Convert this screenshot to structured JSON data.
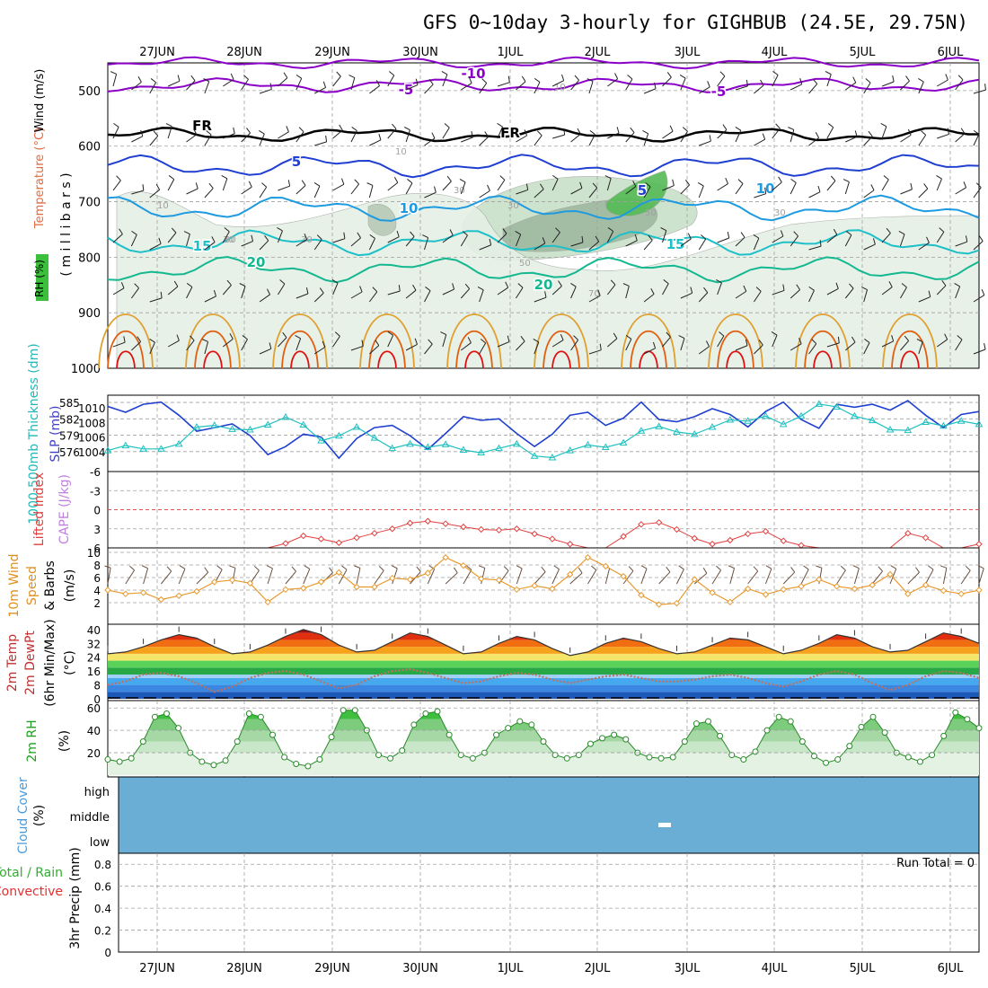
{
  "header": {
    "title": "GFS 0~10day 3-hourly for GIGHBUB (24.5E, 29.75N)"
  },
  "colors": {
    "purple": "#8b00c8",
    "black": "#000000",
    "blue": "#1f3fd0",
    "lightblue": "#1e9be0",
    "cyan": "#1dbfc8",
    "teal": "#14b890",
    "orange": "#e0a030",
    "darkorange": "#e06010",
    "red": "#e01010",
    "slp": "#1f3fd0",
    "thickness": "#20c0c0",
    "lifted": "#e04040",
    "cape": "#c080e0",
    "wind10m": "#e89a30",
    "rh": "#30b030",
    "cloud": "#6aaed6",
    "grid": "#a0a0a0"
  },
  "chart_data": [
    {
      "panel": "upper-air",
      "type": "contour",
      "date_labels": [
        "27JUN",
        "28JUN",
        "29JUN",
        "30JUN",
        "1JUL",
        "2JUL",
        "3JUL",
        "4JUL",
        "5JUL",
        "6JUL"
      ],
      "ylabel_parts": [
        "RH (%)",
        "Temperature (°C)",
        "Wind (m/s)",
        "( m i l l i b a r s )"
      ],
      "y_ticks": [
        "500",
        "600",
        "700",
        "800",
        "900",
        "1000"
      ],
      "ylim": [
        450,
        1000
      ],
      "contour_labels": [
        {
          "text": "-10",
          "level": -10,
          "color": "purple"
        },
        {
          "text": "-5",
          "level": -5,
          "color": "purple"
        },
        {
          "text": "-5",
          "level": -5,
          "color": "purple"
        },
        {
          "text": "FR",
          "level": 0,
          "color": "black"
        },
        {
          "text": "FR",
          "level": 0,
          "color": "black"
        },
        {
          "text": "5",
          "level": 5,
          "color": "blue"
        },
        {
          "text": "5",
          "level": 5,
          "color": "blue"
        },
        {
          "text": "10",
          "level": 10,
          "color": "lightblue"
        },
        {
          "text": "10",
          "level": 10,
          "color": "lightblue"
        },
        {
          "text": "15",
          "level": 15,
          "color": "cyan"
        },
        {
          "text": "15",
          "level": 15,
          "color": "cyan"
        },
        {
          "text": "20",
          "level": 20,
          "color": "teal"
        },
        {
          "text": "20",
          "level": 20,
          "color": "teal"
        }
      ],
      "rh_labels": [
        "10",
        "10",
        "10",
        "30",
        "30",
        "30",
        "30",
        "50",
        "50",
        "70",
        "30",
        "30"
      ]
    },
    {
      "panel": "slp-thickness",
      "type": "line",
      "ylabel_left": "1000-500mb Thickness (dm)",
      "ylabel_right": "SLP (mb)",
      "thickness_ticks": [
        "585",
        "582",
        "579",
        "576"
      ],
      "slp_ticks": [
        "1010",
        "1008",
        "1006",
        "1004"
      ],
      "slp": [
        1010.2,
        1009.4,
        1010.5,
        1010.8,
        1009,
        1006.8,
        1007.3,
        1007.8,
        1006.2,
        1003.6,
        1004.7,
        1006.4,
        1006,
        1003.1,
        1005.8,
        1007.3,
        1007.6,
        1006.2,
        1004.3,
        1006.5,
        1008.8,
        1008.3,
        1008.5,
        1006.5,
        1004.7,
        1006.4,
        1009,
        1009.4,
        1007.6,
        1008.6,
        1010.8,
        1008.4,
        1008.1,
        1008.8,
        1009.9,
        1009.1,
        1007.4,
        1009.5,
        1010.8,
        1008.4,
        1007.2,
        1010.5,
        1010.1,
        1010.5,
        1009.7,
        1011,
        1009,
        1007.3,
        1009.1,
        1009.5
      ],
      "thickness": [
        576.2,
        577.1,
        576.5,
        576.5,
        577.4,
        580.5,
        580.8,
        580.1,
        580.0,
        580.9,
        582.3,
        580.9,
        578.0,
        578.9,
        580.5,
        578.5,
        576.6,
        577.4,
        576.8,
        577.3,
        576.3,
        575.8,
        576.6,
        577.4,
        575.2,
        574.9,
        576.2,
        577.2,
        576.8,
        577.6,
        579.8,
        580.6,
        579.6,
        579.2,
        580.5,
        581.8,
        581.6,
        582.5,
        581.0,
        582.5,
        584.7,
        584.2,
        582.5,
        581.7,
        580.0,
        579.9,
        581.4,
        580.7,
        581.6,
        581.0
      ]
    },
    {
      "panel": "stability",
      "type": "line",
      "ylabel_left": "Lifted Index",
      "ylabel_right": "CAPE (J/kg)",
      "y_ticks": [
        "-6",
        "-3",
        "0",
        "3",
        "6"
      ],
      "ylim": [
        -6,
        6
      ],
      "lifted_index": [
        6,
        6,
        6,
        6,
        6,
        6,
        6,
        6,
        6,
        6,
        5.3,
        4.1,
        4.6,
        5.2,
        4.4,
        3.7,
        3.0,
        2.1,
        1.8,
        2.2,
        2.7,
        3.1,
        3.2,
        3.0,
        3.8,
        4.6,
        5.4,
        6,
        6,
        4.2,
        2.3,
        2.0,
        3.1,
        4.5,
        5.4,
        4.8,
        3.8,
        3.4,
        4.9,
        5.6,
        6,
        6,
        6,
        6,
        6,
        3.7,
        4.4,
        6,
        6,
        5.4
      ],
      "cape": []
    },
    {
      "panel": "wind10m",
      "type": "line",
      "ylabel_parts": [
        "10m Wind",
        "Speed",
        "& Barbs",
        "(m/s)"
      ],
      "y_ticks": [
        "10",
        "8",
        "6",
        "4",
        "2"
      ],
      "ylim": [
        0,
        10
      ],
      "speed": [
        4.0,
        3.4,
        3.6,
        2.5,
        3.1,
        3.8,
        5.3,
        5.6,
        5.1,
        2.1,
        4.1,
        4.3,
        5.3,
        6.8,
        4.5,
        4.5,
        5.9,
        5.7,
        6.7,
        9.2,
        7.9,
        5.8,
        5.6,
        4.1,
        4.7,
        4.2,
        6.5,
        9.2,
        7.8,
        6.2,
        3.2,
        1.7,
        1.9,
        5.7,
        3.6,
        2.1,
        4.2,
        3.3,
        4.1,
        4.6,
        5.7,
        4.6,
        4.2,
        4.8,
        6.5,
        3.4,
        4.8,
        3.9,
        3.4,
        4.0
      ]
    },
    {
      "panel": "temperature",
      "type": "area",
      "ylabel_parts": [
        "2m Temp",
        "2m DewPt",
        "(6hr Min/Max)",
        "(°C)"
      ],
      "y_ticks": [
        "40",
        "32",
        "24",
        "16",
        "8",
        "0"
      ],
      "ylim": [
        0,
        42
      ],
      "temp": [
        26,
        27,
        30,
        34,
        37,
        35,
        30,
        26,
        27,
        31,
        36,
        40,
        37,
        31,
        27,
        28,
        33,
        38,
        36,
        31,
        26,
        27,
        32,
        36,
        34,
        29,
        25,
        27,
        32,
        35,
        33,
        29,
        26,
        27,
        31,
        35,
        34,
        30,
        26,
        28,
        32,
        37,
        35,
        30,
        27,
        28,
        33,
        38,
        36,
        32
      ],
      "dewpt": [
        8,
        10,
        14,
        15,
        13,
        9,
        4,
        7,
        12,
        15,
        16,
        14,
        10,
        6,
        8,
        13,
        16,
        17,
        15,
        12,
        9,
        10,
        13,
        15,
        14,
        11,
        9,
        11,
        13,
        14,
        12,
        10,
        10,
        11,
        13,
        14,
        12,
        9,
        7,
        10,
        14,
        16,
        14,
        9,
        5,
        8,
        13,
        16,
        15,
        12
      ]
    },
    {
      "panel": "rh2m",
      "type": "area",
      "ylabel_parts": [
        "2m RH",
        "(%)"
      ],
      "y_ticks": [
        "60",
        "40",
        "20"
      ],
      "ylim": [
        0,
        65
      ],
      "rh": [
        14,
        12,
        15,
        30,
        52,
        55,
        42,
        20,
        12,
        9,
        13,
        30,
        55,
        52,
        36,
        16,
        10,
        8,
        14,
        34,
        58,
        58,
        40,
        18,
        15,
        22,
        45,
        55,
        57,
        36,
        18,
        15,
        20,
        36,
        42,
        48,
        45,
        30,
        18,
        15,
        18,
        28,
        33,
        36,
        32,
        20,
        16,
        15,
        16,
        30,
        46,
        48,
        35,
        18,
        14,
        21,
        40,
        52,
        48,
        30,
        17,
        11,
        14,
        26,
        43,
        52,
        38,
        20,
        16,
        12,
        18,
        35,
        56,
        50,
        42
      ]
    },
    {
      "panel": "cloud",
      "type": "heatmap",
      "ylabel": "Cloud Cover (%)",
      "levels": [
        "high",
        "middle",
        "low"
      ]
    },
    {
      "panel": "precip",
      "type": "bar",
      "ylabel_left": "Total / Rain",
      "ylabel_left2": "Convective",
      "ylabel": "3hr Precip (mm)",
      "y_ticks": [
        "0.8",
        "0.6",
        "0.4",
        "0.2",
        "0"
      ],
      "ylim": [
        0,
        0.9
      ],
      "run_total": "Run Total = 0",
      "values": []
    }
  ]
}
